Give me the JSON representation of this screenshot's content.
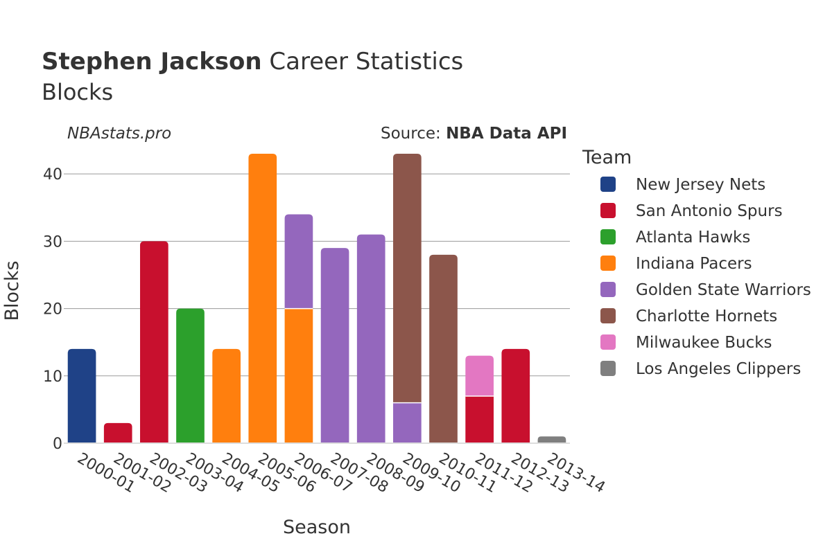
{
  "chart_data": {
    "type": "bar",
    "stacked": true,
    "title_bold": "Stephen Jackson",
    "title_rest": " Career Statistics",
    "subtitle": "Blocks",
    "watermark": "NBAstats.pro",
    "source_prefix": "Source: ",
    "source_name": "NBA Data API",
    "xlabel": "Season",
    "ylabel": "Blocks",
    "ylim": [
      0,
      43
    ],
    "yticks": [
      0,
      10,
      20,
      30,
      40
    ],
    "grid": true,
    "legend_title": "Team",
    "legend_position": "right",
    "categories": [
      "2000-01",
      "2001-02",
      "2002-03",
      "2003-04",
      "2004-05",
      "2005-06",
      "2006-07",
      "2007-08",
      "2008-09",
      "2009-10",
      "2010-11",
      "2011-12",
      "2012-13",
      "2013-14"
    ],
    "series": [
      {
        "name": "New Jersey Nets",
        "color": "#1f4287",
        "values": [
          14,
          0,
          0,
          0,
          0,
          0,
          0,
          0,
          0,
          0,
          0,
          0,
          0,
          0
        ]
      },
      {
        "name": "San Antonio Spurs",
        "color": "#c8102e",
        "values": [
          0,
          3,
          30,
          0,
          0,
          0,
          0,
          0,
          0,
          0,
          0,
          7,
          14,
          0
        ]
      },
      {
        "name": "Atlanta Hawks",
        "color": "#2ca02c",
        "values": [
          0,
          0,
          0,
          20,
          0,
          0,
          0,
          0,
          0,
          0,
          0,
          0,
          0,
          0
        ]
      },
      {
        "name": "Indiana Pacers",
        "color": "#ff7f0e",
        "values": [
          0,
          0,
          0,
          0,
          14,
          43,
          20,
          0,
          0,
          0,
          0,
          0,
          0,
          0
        ]
      },
      {
        "name": "Golden State Warriors",
        "color": "#9467bd",
        "values": [
          0,
          0,
          0,
          0,
          0,
          0,
          14,
          29,
          31,
          6,
          0,
          0,
          0,
          0
        ]
      },
      {
        "name": "Charlotte Hornets",
        "color": "#8c564b",
        "values": [
          0,
          0,
          0,
          0,
          0,
          0,
          0,
          0,
          0,
          37,
          28,
          0,
          0,
          0
        ]
      },
      {
        "name": "Milwaukee Bucks",
        "color": "#e377c2",
        "values": [
          0,
          0,
          0,
          0,
          0,
          0,
          0,
          0,
          0,
          0,
          0,
          6,
          0,
          0
        ]
      },
      {
        "name": "Los Angeles Clippers",
        "color": "#7f7f7f",
        "values": [
          0,
          0,
          0,
          0,
          0,
          0,
          0,
          0,
          0,
          0,
          0,
          0,
          0,
          1
        ]
      }
    ]
  }
}
